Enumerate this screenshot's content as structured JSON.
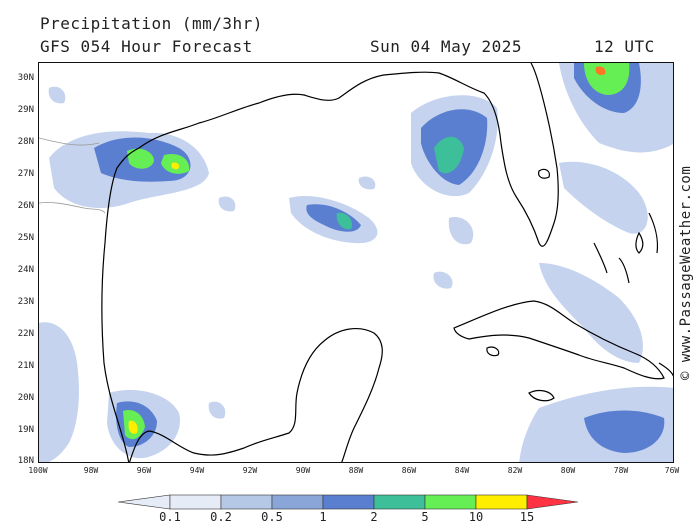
{
  "header": {
    "title": "Precipitation (mm/3hr)",
    "subtitle": "GFS 054 Hour Forecast",
    "date": "Sun 04 May 2025",
    "time": "12 UTC"
  },
  "credit": "© www.PassageWeather.com",
  "lat_labels": [
    "30N",
    "29N",
    "28N",
    "27N",
    "26N",
    "25N",
    "24N",
    "23N",
    "22N",
    "21N",
    "20N",
    "19N",
    "18N"
  ],
  "lon_labels": [
    "100W",
    "98W",
    "96W",
    "94W",
    "92W",
    "90W",
    "88W",
    "86W",
    "84W",
    "82W",
    "80W",
    "78W",
    "76W"
  ],
  "legend": {
    "labels": [
      "0.1",
      "0.2",
      "0.5",
      "1",
      "2",
      "5",
      "10",
      "15"
    ],
    "colors": [
      "#e6ecf7",
      "#b5c9e6",
      "#8aa6d9",
      "#5b7fd0",
      "#3dbf9a",
      "#66ee55",
      "#ffee00",
      "#ff9900",
      "#ff3344"
    ]
  },
  "colors": {
    "light_blue": "#c5d3ee",
    "mid_blue": "#8aa6d9",
    "blue": "#5b7fd0",
    "teal": "#3dbf9a",
    "green": "#66ee55",
    "yellow": "#ffee00",
    "orange": "#ff7722",
    "coast": "#000000"
  }
}
